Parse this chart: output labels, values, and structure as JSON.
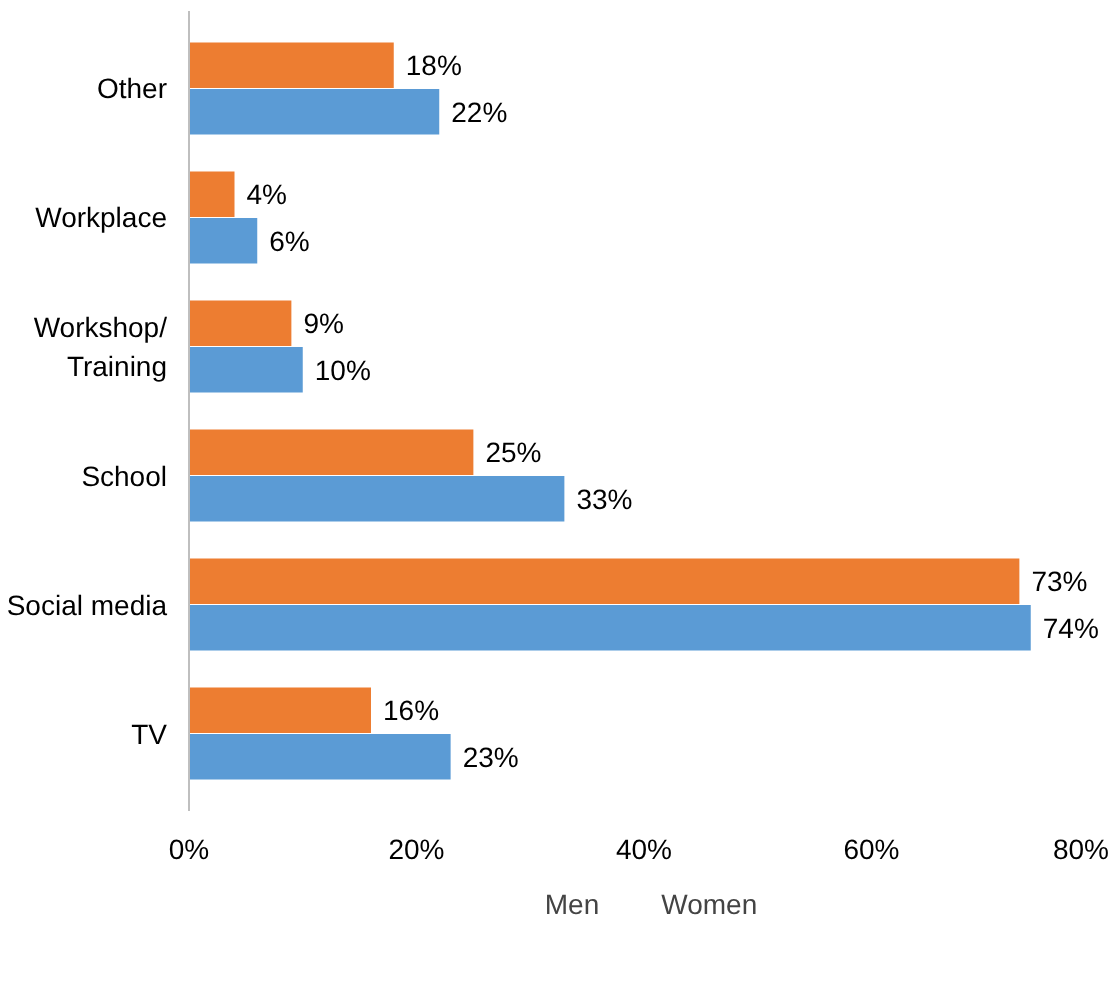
{
  "chart_data": {
    "type": "bar",
    "orientation": "horizontal",
    "categories": [
      "Other",
      "Workplace",
      "Workshop/\nTraining",
      "School",
      "Social media",
      "TV"
    ],
    "series": [
      {
        "name": "Men",
        "color": "#ed7d31",
        "values": [
          18,
          4,
          9,
          25,
          73,
          16
        ],
        "value_labels": [
          "18%",
          "4%",
          "9%",
          "25%",
          "73%",
          "16%"
        ]
      },
      {
        "name": "Women",
        "color": "#5b9bd5",
        "values": [
          22,
          6,
          10,
          33,
          74,
          23
        ],
        "value_labels": [
          "22%",
          "6%",
          "10%",
          "33%",
          "74%",
          "23%"
        ]
      }
    ],
    "xlim": [
      0,
      80
    ],
    "xticks": [
      {
        "value": 0,
        "label": "0%"
      },
      {
        "value": 20,
        "label": "20%"
      },
      {
        "value": 40,
        "label": "40%"
      },
      {
        "value": 60,
        "label": "60%"
      },
      {
        "value": 80,
        "label": "80%"
      }
    ],
    "grid": false,
    "legend": "bottom"
  }
}
